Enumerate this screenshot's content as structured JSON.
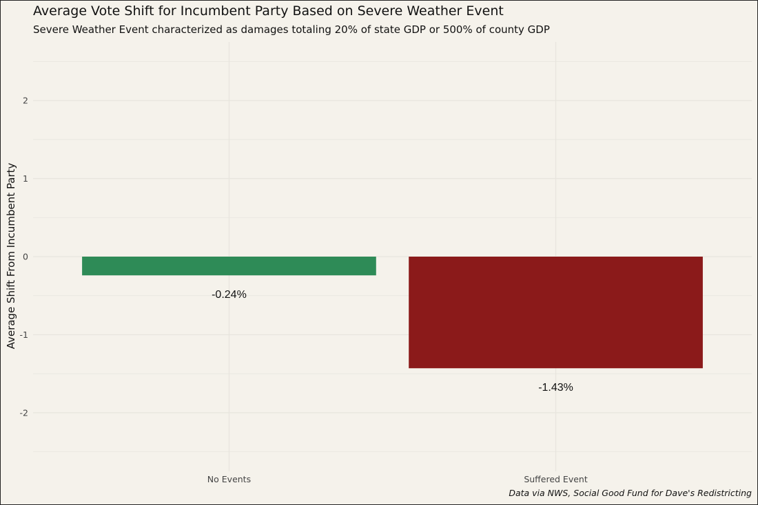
{
  "chart_data": {
    "type": "bar",
    "title": "Average Vote Shift for Incumbent Party Based on Severe Weather Event",
    "subtitle": "Severe Weather Event characterized as damages totaling 20% of state GDP or 500% of county GDP",
    "caption": "Data via NWS, Social Good Fund for Dave's Redistricting",
    "xlabel": "",
    "ylabel": "Average Shift From Incumbent Party",
    "categories": [
      "No Events",
      "Suffered Event"
    ],
    "values": [
      -0.24,
      -1.43
    ],
    "data_labels": [
      "-0.24%",
      "-1.43%"
    ],
    "bar_colors": [
      "#2e8b57",
      "#8b1a1a"
    ],
    "ylim": [
      -2.75,
      2.75
    ],
    "yticks": [
      -2,
      -1,
      0,
      1,
      2
    ],
    "ytick_labels": [
      "-2",
      "-1",
      "0",
      "1",
      "2"
    ],
    "grid": true,
    "legend": "none"
  },
  "colors": {
    "background": "#f5f2eb",
    "gridline": "#e8e5de",
    "text": "#111111",
    "tick_text": "#444444"
  }
}
